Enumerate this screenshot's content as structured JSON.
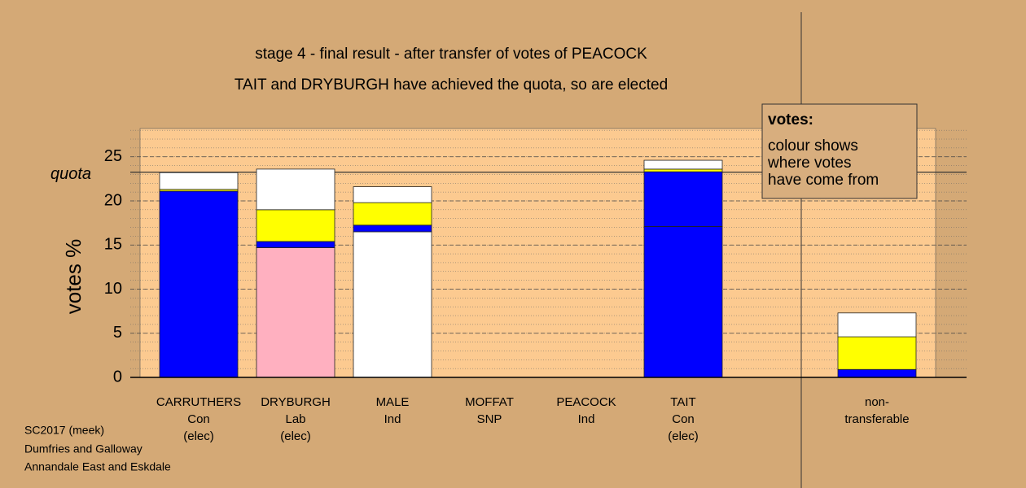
{
  "chart_data": {
    "type": "stacked-bar",
    "title": "stage 4 - final result - after transfer of votes of PEACOCK",
    "subtitle": "TAIT and DRYBURGH have achieved the quota, so are elected",
    "y_label": "votes %",
    "quota": {
      "value": 23.25,
      "label": "quota"
    },
    "categories": [
      [
        "CARRUTHERS",
        "Con",
        "(elec)"
      ],
      [
        "DRYBURGH",
        "Lab",
        "(elec)"
      ],
      [
        "MALE",
        "Ind"
      ],
      [
        "MOFFAT",
        "SNP"
      ],
      [
        "PEACOCK",
        "Ind"
      ],
      [
        "TAIT",
        "Con",
        "(elec)"
      ],
      null,
      [
        "non-",
        "transferable"
      ]
    ],
    "series": [
      {
        "colors": [
          "#0000ff",
          "#ffb0c0",
          "#ffffff",
          "#ffffff",
          "#ffffff",
          "#0000ff",
          null,
          "#ffffff"
        ],
        "values": [
          21.1,
          14.7,
          16.5,
          0,
          0,
          17.1,
          null,
          0
        ]
      },
      {
        "color": "#0000ff",
        "values": [
          0,
          0.7,
          0.75,
          0,
          0,
          6.2,
          null,
          0.9
        ]
      },
      {
        "color": "#ffff00",
        "values": [
          0.2,
          3.6,
          2.55,
          0,
          0,
          0.3,
          null,
          3.7
        ]
      },
      {
        "color": "#ffffff",
        "values": [
          1.9,
          4.6,
          1.8,
          0,
          0,
          1.0,
          null,
          2.7
        ]
      }
    ],
    "ylim": [
      0,
      28.2
    ],
    "yticks": [
      0,
      5,
      10,
      15,
      20,
      25
    ],
    "grid": true,
    "minor_grid_step": 1,
    "legend": {
      "title": "votes:",
      "lines": [
        "colour shows",
        "where votes",
        "have come from"
      ]
    },
    "footer": [
      "SC2017 (meek)",
      "Dumfries and Galloway",
      "Annandale East and Eskdale"
    ]
  }
}
